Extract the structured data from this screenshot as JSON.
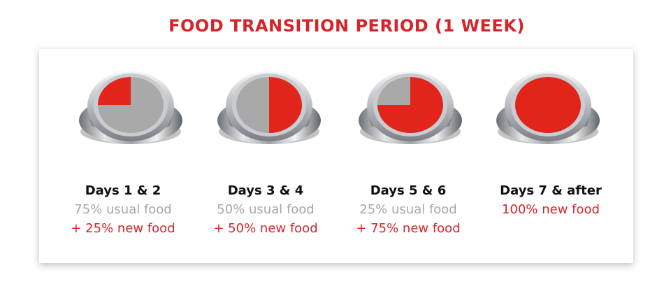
{
  "title": "FOOD TRANSITION PERIOD (1 WEEK)",
  "steps": [
    {
      "days": "Days 1 & 2",
      "usual": "75% usual food",
      "new": "+ 25% new food"
    },
    {
      "days": "Days 3 & 4",
      "usual": "50% usual food",
      "new": "+ 50% new food"
    },
    {
      "days": "Days 5 & 6",
      "usual": "25% usual food",
      "new": "+ 75% new food"
    },
    {
      "days": "Days 7 & after",
      "new": "100% new food"
    }
  ]
}
